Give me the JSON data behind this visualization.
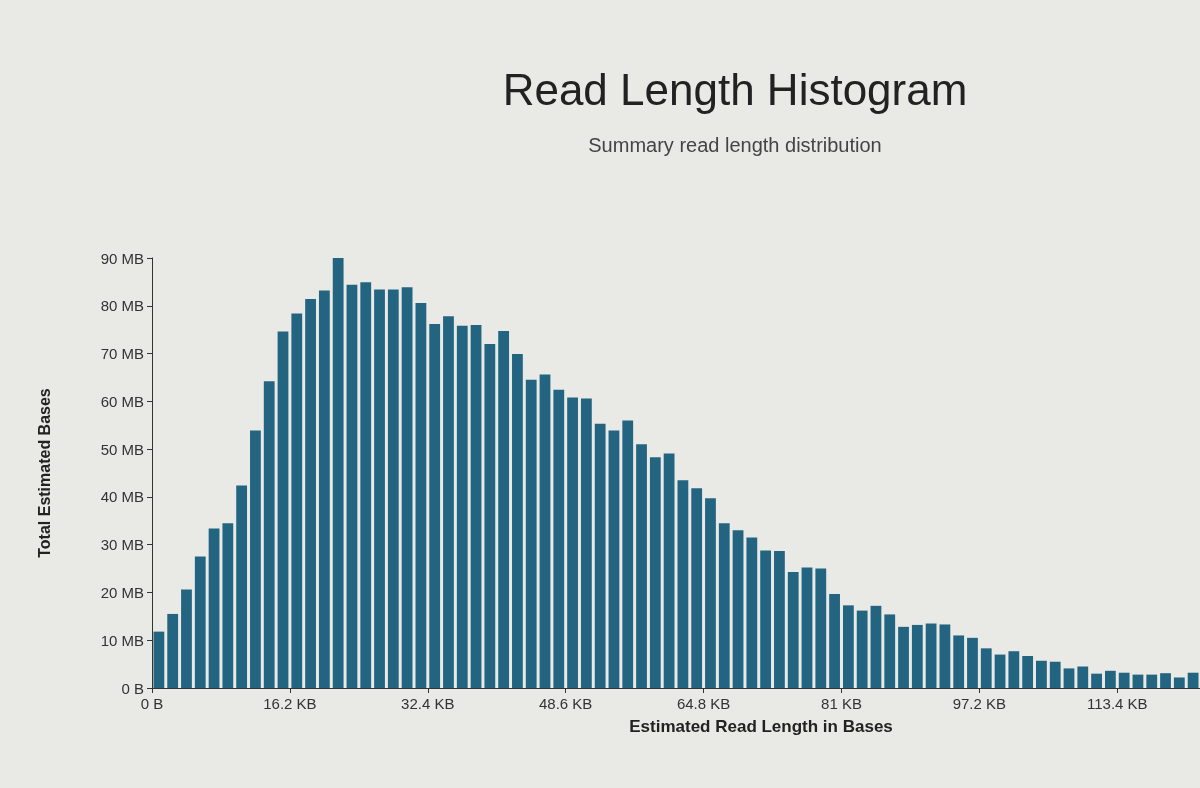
{
  "chart_data": {
    "type": "histogram",
    "title": "Read Length Histogram",
    "subtitle": "Summary read length distribution",
    "xlabel": "Estimated Read Length in Bases",
    "ylabel": "Total Estimated Bases",
    "color": "#236580",
    "bins": [
      0,
      1.62,
      3.24,
      4.86,
      6.48,
      8.1,
      9.72,
      11.34,
      12.96,
      14.58,
      16.2,
      17.82,
      19.44,
      21.06,
      22.68,
      24.3,
      25.92,
      27.54,
      29.16,
      30.78,
      32.4,
      34.02,
      35.64,
      37.26,
      38.88,
      40.5,
      42.12,
      43.74,
      45.36,
      46.98,
      48.6,
      50.22,
      51.84,
      53.46,
      55.08,
      56.7,
      58.32,
      59.94,
      61.56,
      63.18,
      64.8,
      66.42,
      68.04,
      69.66,
      71.28,
      72.9,
      74.52,
      76.14,
      77.76,
      79.38,
      81,
      82.62,
      84.24,
      85.86,
      87.48,
      89.1,
      90.72,
      92.34,
      93.96,
      95.58,
      97.2,
      98.82,
      100.44,
      102.06,
      103.68,
      105.3,
      106.92,
      108.54,
      110.16,
      111.78,
      113.4,
      115.02,
      116.64,
      118.26,
      119.88,
      121.5,
      123.12
    ],
    "values": [
      11.8,
      15.5,
      20.6,
      27.5,
      33.4,
      34.5,
      42.4,
      53.9,
      64.2,
      74.6,
      78.4,
      81.4,
      83.2,
      90,
      84.4,
      84.9,
      83.4,
      83.4,
      83.9,
      80.6,
      76.2,
      77.8,
      75.8,
      76,
      72,
      74.7,
      69.9,
      64.5,
      65.6,
      62.4,
      60.8,
      60.6,
      55.3,
      53.9,
      56,
      51,
      48.3,
      49.1,
      43.5,
      41.8,
      39.7,
      34.5,
      33,
      31.5,
      28.8,
      28.7,
      24.3,
      25.2,
      25,
      19.7,
      17.3,
      16.2,
      17.2,
      15.4,
      12.8,
      13.2,
      13.5,
      13.3,
      11,
      10.5,
      8.3,
      7,
      7.7,
      6.7,
      5.7,
      5.5,
      4.1,
      4.5,
      3,
      3.6,
      3.2,
      2.8,
      2.8,
      3.1,
      2.2,
      3.2
    ],
    "xlim": [
      0,
      123.12
    ],
    "xticks": [
      {
        "value": 0,
        "label": "0 B"
      },
      {
        "value": 16.2,
        "label": "16.2 KB"
      },
      {
        "value": 32.4,
        "label": "32.4 KB"
      },
      {
        "value": 48.6,
        "label": "48.6 KB"
      },
      {
        "value": 64.8,
        "label": "64.8 KB"
      },
      {
        "value": 81,
        "label": "81 KB"
      },
      {
        "value": 97.2,
        "label": "97.2 KB"
      },
      {
        "value": 113.4,
        "label": "113.4 KB"
      }
    ],
    "ylim": [
      0,
      90
    ],
    "yticks": [
      {
        "value": 0,
        "label": "0 B"
      },
      {
        "value": 10,
        "label": "10 MB"
      },
      {
        "value": 20,
        "label": "20 MB"
      },
      {
        "value": 30,
        "label": "30 MB"
      },
      {
        "value": 40,
        "label": "40 MB"
      },
      {
        "value": 50,
        "label": "50 MB"
      },
      {
        "value": 60,
        "label": "60 MB"
      },
      {
        "value": 70,
        "label": "70 MB"
      },
      {
        "value": 80,
        "label": "80 MB"
      },
      {
        "value": 90,
        "label": "90 MB"
      }
    ],
    "grid": false
  }
}
